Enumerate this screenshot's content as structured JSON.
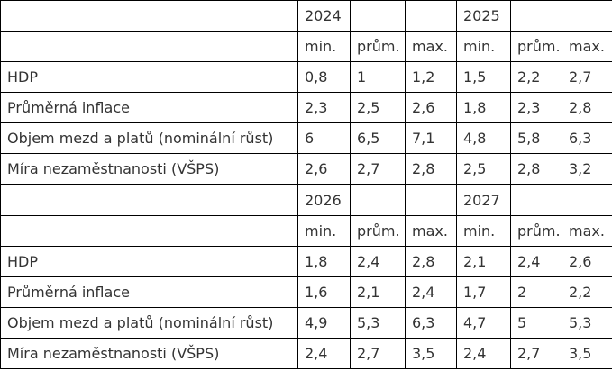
{
  "blocks": [
    {
      "year_a": "2024",
      "year_b": "2025",
      "sub_headers": [
        "min.",
        "prům.",
        "max.",
        "min.",
        "prům.",
        "max."
      ],
      "rows": [
        {
          "label": "HDP",
          "values": [
            "0,8",
            "1",
            "1,2",
            "1,5",
            "2,2",
            "2,7"
          ]
        },
        {
          "label": "Průměrná inflace",
          "values": [
            "2,3",
            "2,5",
            "2,6",
            "1,8",
            "2,3",
            "2,8"
          ]
        },
        {
          "label": "Objem mezd a platů (nominální růst)",
          "values": [
            "6",
            "6,5",
            "7,1",
            "4,8",
            "5,8",
            "6,3"
          ]
        },
        {
          "label": "Míra nezaměstnanosti (VŠPS)",
          "values": [
            "2,6",
            "2,7",
            "2,8",
            "2,5",
            "2,8",
            "3,2"
          ]
        }
      ]
    },
    {
      "year_a": "2026",
      "year_b": "2027",
      "sub_headers": [
        "min.",
        "prům.",
        "max.",
        "min.",
        "prům.",
        "max."
      ],
      "rows": [
        {
          "label": "HDP",
          "values": [
            "1,8",
            "2,4",
            "2,8",
            "2,1",
            "2,4",
            "2,6"
          ]
        },
        {
          "label": "Průměrná inflace",
          "values": [
            "1,6",
            "2,1",
            "2,4",
            "1,7",
            "2",
            "2,2"
          ]
        },
        {
          "label": "Objem mezd a platů (nominální růst)",
          "values": [
            "4,9",
            "5,3",
            "6,3",
            "4,7",
            "5",
            "5,3"
          ]
        },
        {
          "label": "Míra nezaměstnanosti (VŠPS)",
          "values": [
            "2,4",
            "2,7",
            "3,5",
            "2,4",
            "2,7",
            "3,5"
          ]
        }
      ]
    }
  ]
}
